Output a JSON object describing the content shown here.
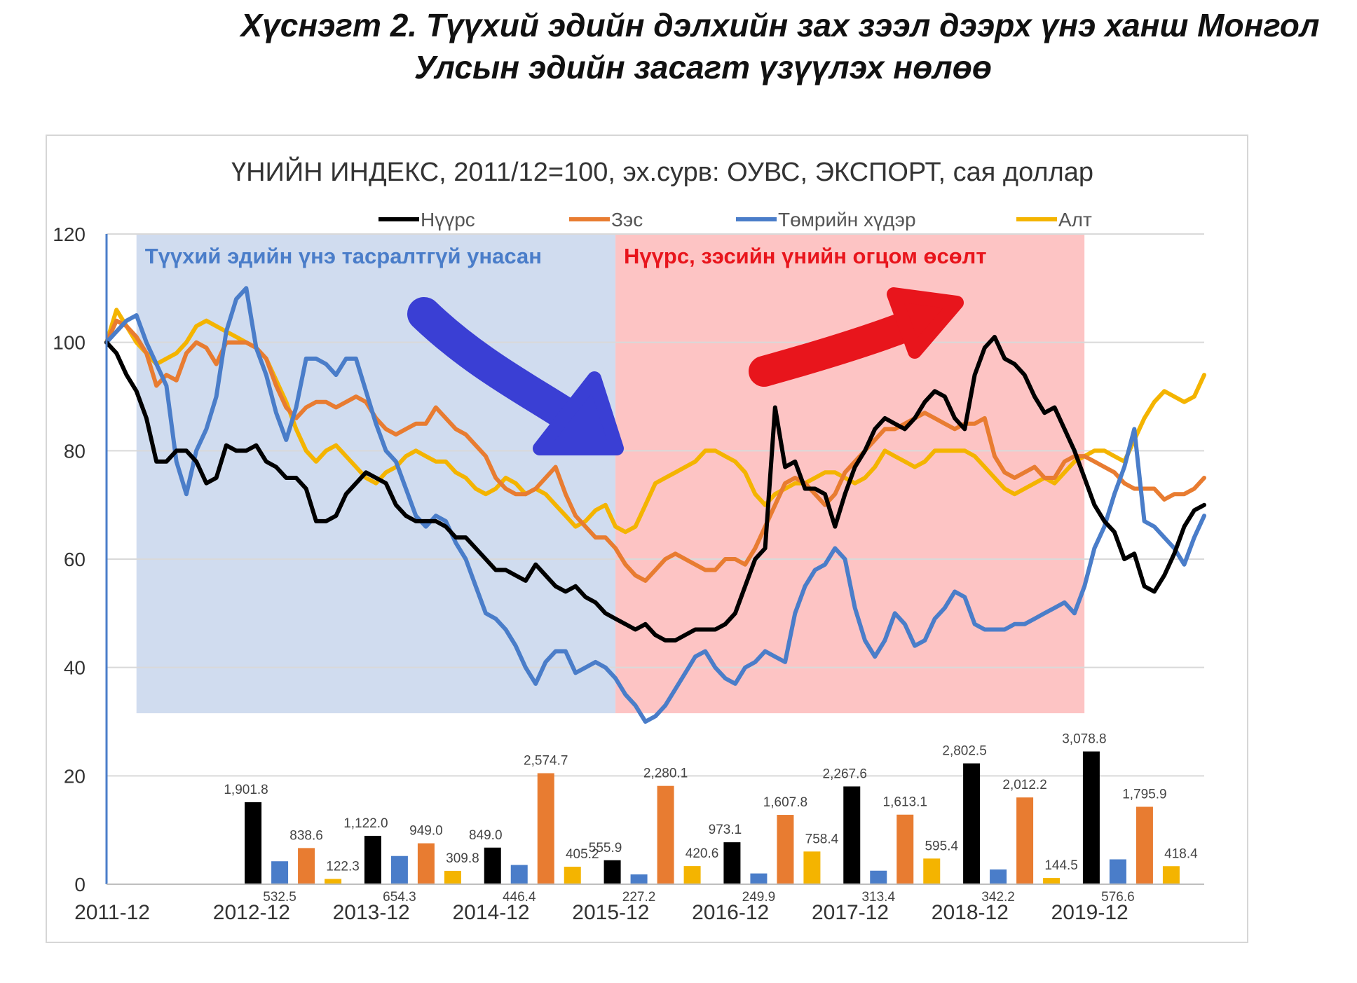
{
  "figure": {
    "title_line1": "Хүснэгт 2. Түүхий эдийн дэлхийн зах зээл дээрх үнэ ханш Монгол",
    "title_line2": "Улсын эдийн засагт үзүүлэх нөлөө"
  },
  "chart_data": {
    "type": "line",
    "title": "ҮНИЙН ИНДЕКС, 2011/12=100,  эх.сурв: ОУВС, ЭКСПОРТ, сая доллар",
    "xlabel": "",
    "ylabel": "",
    "ylim": [
      0,
      120
    ],
    "yticks": [
      0,
      20,
      40,
      60,
      80,
      100,
      120
    ],
    "x_tick_labels": [
      "2011-12",
      "2012-12",
      "2013-12",
      "2014-12",
      "2015-12",
      "2016-12",
      "2017-12",
      "2018-12",
      "2019-12"
    ],
    "grid": true,
    "legend_position": "top",
    "shaded_regions": [
      {
        "label": "Түүхий эдийн үнэ тасралтгүй унасан",
        "x_start": "2012-03",
        "x_end": "2016-03",
        "color": "#d0dcef"
      },
      {
        "label": "Нүүрс, зэсийн үнийн огцом өсөлт",
        "x_start": "2016-03",
        "x_end": "2020-02",
        "color": "#fdc4c4"
      }
    ],
    "trend_arrows": [
      {
        "direction": "down",
        "color": "#3a3fd4"
      },
      {
        "direction": "up",
        "color": "#e8151c"
      }
    ],
    "series": [
      {
        "name": "Нүүрс",
        "color": "#000000",
        "values": [
          100,
          98,
          94,
          91,
          86,
          78,
          78,
          80,
          80,
          78,
          74,
          75,
          81,
          80,
          80,
          81,
          78,
          77,
          75,
          75,
          73,
          67,
          67,
          68,
          72,
          74,
          76,
          75,
          74,
          70,
          68,
          67,
          67,
          67,
          66,
          64,
          64,
          62,
          60,
          58,
          58,
          57,
          56,
          59,
          57,
          55,
          54,
          55,
          53,
          52,
          50,
          49,
          48,
          47,
          48,
          46,
          45,
          45,
          46,
          47,
          47,
          47,
          48,
          50,
          55,
          60,
          62,
          88,
          77,
          78,
          73,
          73,
          72,
          66,
          72,
          77,
          80,
          84,
          86,
          85,
          84,
          86,
          89,
          91,
          90,
          86,
          84,
          94,
          99,
          101,
          97,
          96,
          94,
          90,
          87,
          88,
          84,
          80,
          75,
          70,
          67,
          65,
          60,
          61,
          55,
          54,
          57,
          61,
          66,
          69,
          70
        ]
      },
      {
        "name": "Зэс",
        "color": "#e87c31",
        "values": [
          100,
          104,
          103,
          101,
          98,
          92,
          94,
          93,
          98,
          100,
          99,
          96,
          100,
          100,
          100,
          99,
          97,
          92,
          88,
          86,
          88,
          89,
          89,
          88,
          89,
          90,
          89,
          86,
          84,
          83,
          84,
          85,
          85,
          88,
          86,
          84,
          83,
          81,
          79,
          75,
          73,
          72,
          72,
          73,
          75,
          77,
          72,
          68,
          66,
          64,
          64,
          62,
          59,
          57,
          56,
          58,
          60,
          61,
          60,
          59,
          58,
          58,
          60,
          60,
          59,
          62,
          66,
          70,
          74,
          75,
          74,
          72,
          70,
          72,
          76,
          78,
          80,
          82,
          84,
          84,
          85,
          86,
          87,
          86,
          85,
          84,
          85,
          85,
          86,
          79,
          76,
          75,
          76,
          77,
          75,
          75,
          78,
          79,
          79,
          78,
          77,
          76,
          74,
          73,
          73,
          73,
          71,
          72,
          72,
          73,
          75
        ]
      },
      {
        "name": "Төмрийн хүдэр",
        "color": "#4a7dc9",
        "values": [
          100,
          102,
          104,
          105,
          100,
          96,
          92,
          78,
          72,
          80,
          84,
          90,
          102,
          108,
          110,
          99,
          94,
          87,
          82,
          88,
          97,
          97,
          96,
          94,
          97,
          97,
          91,
          85,
          80,
          78,
          73,
          68,
          66,
          68,
          67,
          63,
          60,
          55,
          50,
          49,
          47,
          44,
          40,
          37,
          41,
          43,
          43,
          39,
          40,
          41,
          40,
          38,
          35,
          33,
          30,
          31,
          33,
          36,
          39,
          42,
          43,
          40,
          38,
          37,
          40,
          41,
          43,
          42,
          41,
          50,
          55,
          58,
          59,
          62,
          60,
          51,
          45,
          42,
          45,
          50,
          48,
          44,
          45,
          49,
          51,
          54,
          53,
          48,
          47,
          47,
          47,
          48,
          48,
          49,
          50,
          51,
          52,
          50,
          55,
          62,
          66,
          72,
          77,
          84,
          67,
          66,
          64,
          62,
          59,
          64,
          68
        ]
      },
      {
        "name": "Алт",
        "color": "#f4b400",
        "values": [
          100,
          106,
          103,
          100,
          98,
          96,
          97,
          98,
          100,
          103,
          104,
          103,
          102,
          101,
          100,
          99,
          97,
          93,
          89,
          84,
          80,
          78,
          80,
          81,
          79,
          77,
          75,
          74,
          76,
          77,
          79,
          80,
          79,
          78,
          78,
          76,
          75,
          73,
          72,
          73,
          75,
          74,
          72,
          73,
          72,
          70,
          68,
          66,
          67,
          69,
          70,
          66,
          65,
          66,
          70,
          74,
          75,
          76,
          77,
          78,
          80,
          80,
          79,
          78,
          76,
          72,
          70,
          72,
          73,
          74,
          74,
          75,
          76,
          76,
          75,
          74,
          75,
          77,
          80,
          79,
          78,
          77,
          78,
          80,
          80,
          80,
          80,
          79,
          77,
          75,
          73,
          72,
          73,
          74,
          75,
          74,
          76,
          78,
          79,
          80,
          80,
          79,
          78,
          82,
          86,
          89,
          91,
          90,
          89,
          90,
          94
        ]
      }
    ],
    "export_bars": {
      "unit": "сая доллар",
      "years": [
        "2012",
        "2013",
        "2014",
        "2015",
        "2016",
        "2017",
        "2018",
        "2019"
      ],
      "series": [
        {
          "name": "Нүүрс",
          "color": "#000000",
          "values": [
            1901.8,
            1122.0,
            849.0,
            555.9,
            973.1,
            2267.6,
            2802.5,
            3078.8
          ],
          "labels": [
            "1,901.8",
            "1,122.0",
            "849.0",
            "555.9",
            "973.1",
            "2,267.6",
            "2,802.5",
            "3,078.8"
          ]
        },
        {
          "name": "Төмрийн хүдэр",
          "color": "#4a7dc9",
          "values": [
            532.5,
            654.3,
            446.4,
            227.2,
            249.9,
            313.4,
            342.2,
            576.6
          ],
          "labels": [
            "532.5",
            "654.3",
            "446.4",
            "227.2",
            "249.9",
            "313.4",
            "342.2",
            "576.6"
          ]
        },
        {
          "name": "Зэс",
          "color": "#e87c31",
          "values": [
            838.6,
            949.0,
            2574.7,
            2280.1,
            1607.8,
            1613.1,
            2012.2,
            1795.9
          ],
          "labels": [
            "838.6",
            "949.0",
            "2,574.7",
            "2,280.1",
            "1,607.8",
            "1,613.1",
            "2,012.2",
            "1,795.9"
          ]
        },
        {
          "name": "Алт",
          "color": "#f4b400",
          "values": [
            122.3,
            309.8,
            405.2,
            420.6,
            758.4,
            595.4,
            144.5,
            418.4
          ],
          "labels": [
            "122.3",
            "309.8",
            "405.2",
            "420.6",
            "758.4",
            "595.4",
            "144.5",
            "418.4"
          ]
        }
      ]
    }
  }
}
